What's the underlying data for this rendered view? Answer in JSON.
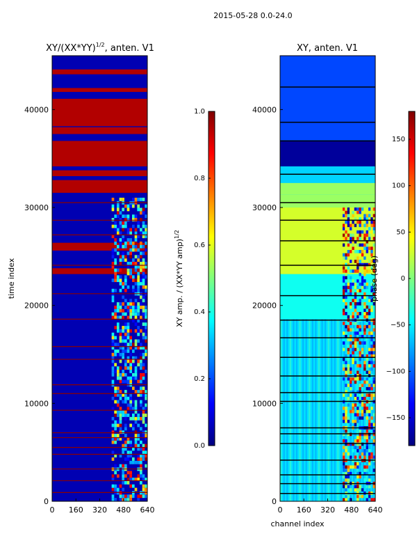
{
  "figure": {
    "suptitle": "2015-05-28 0.0-24.0"
  },
  "colors": {
    "jet": [
      "#00007f",
      "#0000ff",
      "#007fff",
      "#00ffff",
      "#7fff7f",
      "#ffff00",
      "#ff7f00",
      "#ff0000",
      "#7f0000"
    ]
  },
  "chart_data": [
    {
      "type": "heatmap",
      "title": "XY/(XX*YY)",
      "title_sup": "1/2",
      "title_suffix": ", anten. V1",
      "xlabel": "",
      "ylabel": "time index",
      "xlim": [
        0,
        640
      ],
      "ylim": [
        0,
        45500
      ],
      "xticks": [
        0,
        160,
        320,
        480,
        640
      ],
      "yticks": [
        0,
        10000,
        20000,
        30000,
        40000
      ],
      "colorbar": {
        "label_main": "XY amp. / (XX*YY amp)",
        "label_sup": "1/2",
        "vmin": 0.0,
        "vmax": 1.0,
        "ticks": [
          "0.0",
          "0.2",
          "0.4",
          "0.6",
          "0.8",
          "1.0"
        ],
        "tick_values": [
          0,
          0.2,
          0.4,
          0.6,
          0.8,
          1.0
        ]
      },
      "bands": [
        {
          "t0": 0,
          "t1": 31500,
          "v": 0.05
        },
        {
          "t0": 31500,
          "t1": 32800,
          "v": 0.95
        },
        {
          "t0": 33200,
          "t1": 33800,
          "v": 0.95
        },
        {
          "t0": 34200,
          "t1": 36800,
          "v": 0.95
        },
        {
          "t0": 37500,
          "t1": 38200,
          "v": 0.95
        },
        {
          "t0": 38300,
          "t1": 41100,
          "v": 0.95
        },
        {
          "t0": 41800,
          "t1": 42200,
          "v": 0.95
        },
        {
          "t0": 42500,
          "t1": 45500,
          "v": 0.05
        },
        {
          "t0": 43600,
          "t1": 44100,
          "v": 0.95
        },
        {
          "t0": 25600,
          "t1": 26400,
          "v": 0.95
        },
        {
          "t0": 23200,
          "t1": 23800,
          "v": 0.95
        }
      ],
      "hlines": [
        900,
        2100,
        3300,
        4800,
        5500,
        6500,
        7000,
        9300,
        11000,
        11900,
        14500,
        15800,
        18600,
        21200,
        24100,
        27200,
        28700,
        30500
      ],
      "patch": {
        "c0": 400,
        "c1": 640,
        "t0": 0,
        "t1": 31000
      }
    },
    {
      "type": "heatmap",
      "title": "XY, anten. V1",
      "xlabel": "channel index",
      "ylabel": "",
      "xlim": [
        0,
        640
      ],
      "ylim": [
        0,
        45500
      ],
      "xticks": [
        0,
        160,
        320,
        480,
        640
      ],
      "yticks": [
        0,
        10000,
        20000,
        30000,
        40000
      ],
      "colorbar": {
        "label_main": "phase (deg)",
        "vmin": -180,
        "vmax": 180,
        "ticks": [
          "−150",
          "−100",
          "−50",
          "0",
          "50",
          "100",
          "150"
        ],
        "tick_values": [
          -150,
          -100,
          -50,
          0,
          50,
          100,
          150
        ]
      },
      "bands": [
        {
          "t0": 0,
          "t1": 18600,
          "v": -55
        },
        {
          "t0": 18600,
          "t1": 23200,
          "v": -40
        },
        {
          "t0": 23200,
          "t1": 30000,
          "v": 30
        },
        {
          "t0": 30000,
          "t1": 31300,
          "v": 10
        },
        {
          "t0": 31300,
          "t1": 32500,
          "v": 10
        },
        {
          "t0": 34200,
          "t1": 36800,
          "v": -170
        },
        {
          "t0": 36800,
          "t1": 45500,
          "v": -110
        }
      ],
      "hlines": [
        800,
        1800,
        2700,
        4200,
        5900,
        6900,
        7500,
        10200,
        11100,
        12800,
        14700,
        16700,
        18500,
        21000,
        24100,
        26600,
        28700,
        30500,
        33400,
        36800,
        38700,
        42300
      ],
      "patch": {
        "c0": 420,
        "c1": 640,
        "t0": 0,
        "t1": 30000
      }
    }
  ]
}
